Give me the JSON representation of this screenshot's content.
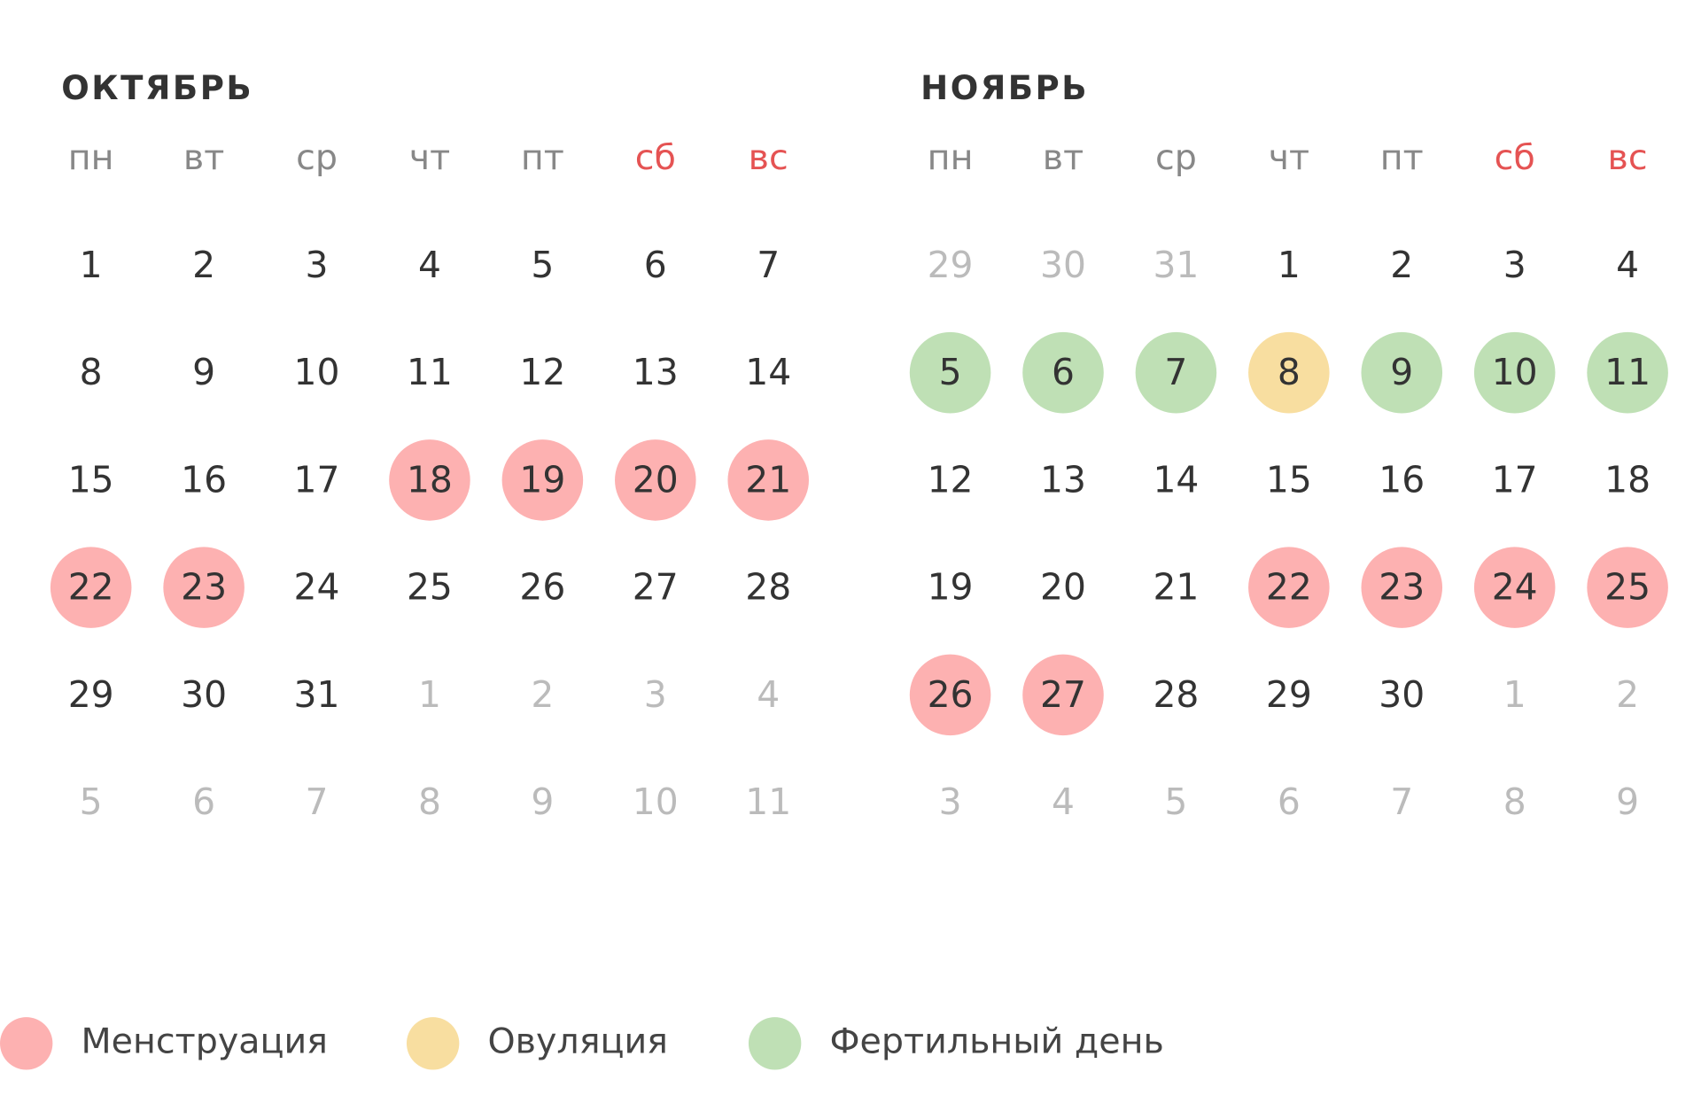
{
  "months": [
    {
      "title": "ОКТЯБРЬ",
      "weekdays": [
        {
          "label": "пн"
        },
        {
          "label": "вт"
        },
        {
          "label": "ср"
        },
        {
          "label": "чт"
        },
        {
          "label": "пт"
        },
        {
          "label": "сб",
          "weekend": true
        },
        {
          "label": "вс",
          "weekend": true
        }
      ],
      "weeks": [
        [
          {
            "day": 1
          },
          {
            "day": 2
          },
          {
            "day": 3
          },
          {
            "day": 4
          },
          {
            "day": 5
          },
          {
            "day": 6
          },
          {
            "day": 7
          }
        ],
        [
          {
            "day": 8
          },
          {
            "day": 9
          },
          {
            "day": 10
          },
          {
            "day": 11
          },
          {
            "day": 12
          },
          {
            "day": 13
          },
          {
            "day": 14
          }
        ],
        [
          {
            "day": 15
          },
          {
            "day": 16
          },
          {
            "day": 17
          },
          {
            "day": 18,
            "mark": "menstruation"
          },
          {
            "day": 19,
            "mark": "menstruation"
          },
          {
            "day": 20,
            "mark": "menstruation"
          },
          {
            "day": 21,
            "mark": "menstruation"
          }
        ],
        [
          {
            "day": 22,
            "mark": "menstruation"
          },
          {
            "day": 23,
            "mark": "menstruation"
          },
          {
            "day": 24
          },
          {
            "day": 25
          },
          {
            "day": 26
          },
          {
            "day": 27
          },
          {
            "day": 28
          }
        ],
        [
          {
            "day": 29
          },
          {
            "day": 30
          },
          {
            "day": 31
          },
          {
            "day": 1,
            "muted": true
          },
          {
            "day": 2,
            "muted": true
          },
          {
            "day": 3,
            "muted": true
          },
          {
            "day": 4,
            "muted": true
          }
        ],
        [
          {
            "day": 5,
            "muted": true
          },
          {
            "day": 6,
            "muted": true
          },
          {
            "day": 7,
            "muted": true
          },
          {
            "day": 8,
            "muted": true
          },
          {
            "day": 9,
            "muted": true
          },
          {
            "day": 10,
            "muted": true
          },
          {
            "day": 11,
            "muted": true
          }
        ]
      ]
    },
    {
      "title": "НОЯБРЬ",
      "weekdays": [
        {
          "label": "пн"
        },
        {
          "label": "вт"
        },
        {
          "label": "ср"
        },
        {
          "label": "чт"
        },
        {
          "label": "пт"
        },
        {
          "label": "сб",
          "weekend": true
        },
        {
          "label": "вс",
          "weekend": true
        }
      ],
      "weeks": [
        [
          {
            "day": 29,
            "muted": true
          },
          {
            "day": 30,
            "muted": true
          },
          {
            "day": 31,
            "muted": true
          },
          {
            "day": 1
          },
          {
            "day": 2
          },
          {
            "day": 3
          },
          {
            "day": 4
          }
        ],
        [
          {
            "day": 5,
            "mark": "fertile"
          },
          {
            "day": 6,
            "mark": "fertile"
          },
          {
            "day": 7,
            "mark": "fertile"
          },
          {
            "day": 8,
            "mark": "ovulation"
          },
          {
            "day": 9,
            "mark": "fertile"
          },
          {
            "day": 10,
            "mark": "fertile"
          },
          {
            "day": 11,
            "mark": "fertile"
          }
        ],
        [
          {
            "day": 12
          },
          {
            "day": 13
          },
          {
            "day": 14
          },
          {
            "day": 15
          },
          {
            "day": 16
          },
          {
            "day": 17
          },
          {
            "day": 18
          }
        ],
        [
          {
            "day": 19
          },
          {
            "day": 20
          },
          {
            "day": 21
          },
          {
            "day": 22,
            "mark": "menstruation"
          },
          {
            "day": 23,
            "mark": "menstruation"
          },
          {
            "day": 24,
            "mark": "menstruation"
          },
          {
            "day": 25,
            "mark": "menstruation"
          }
        ],
        [
          {
            "day": 26,
            "mark": "menstruation"
          },
          {
            "day": 27,
            "mark": "menstruation"
          },
          {
            "day": 28
          },
          {
            "day": 29
          },
          {
            "day": 30
          },
          {
            "day": 1,
            "muted": true
          },
          {
            "day": 2,
            "muted": true
          }
        ],
        [
          {
            "day": 3,
            "muted": true
          },
          {
            "day": 4,
            "muted": true
          },
          {
            "day": 5,
            "muted": true
          },
          {
            "day": 6,
            "muted": true
          },
          {
            "day": 7,
            "muted": true
          },
          {
            "day": 8,
            "muted": true
          },
          {
            "day": 9,
            "muted": true
          }
        ]
      ]
    }
  ],
  "legend": [
    {
      "key": "menstruation",
      "label": "Менструация",
      "color": "#fdb1b1"
    },
    {
      "key": "ovulation",
      "label": "Овуляция",
      "color": "#f8dea0"
    },
    {
      "key": "fertile",
      "label": "Фертильный день",
      "color": "#bfe0b5"
    }
  ]
}
